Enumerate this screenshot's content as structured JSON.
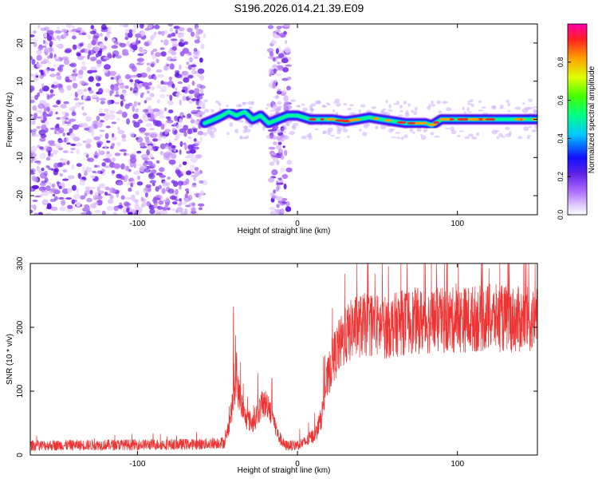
{
  "title": "S196.2026.014.21.39.E09",
  "colors": {
    "snr_line": "#ee3333",
    "ridge": "#e83030"
  },
  "chart_data": [
    {
      "type": "heatmap",
      "name": "spectrogram",
      "xlabel": "Height of straight line (km)",
      "ylabel": "Frequency (Hz)",
      "xlim": [
        -167,
        150
      ],
      "ylim": [
        -25,
        25
      ],
      "xticks": [
        -100,
        0,
        100
      ],
      "yticks": [
        -20,
        -10,
        0,
        10,
        20
      ],
      "noise_regions_km": [
        [
          -167,
          -58
        ],
        [
          -17,
          -5
        ]
      ],
      "signal_start_km": -58,
      "ridge": {
        "x": [
          -58,
          -52,
          -47,
          -43,
          -38,
          -33,
          -28,
          -23,
          -18,
          -12,
          -6,
          0,
          8,
          15,
          22,
          30,
          38,
          45,
          52,
          60,
          68,
          75,
          80,
          84,
          90,
          100,
          110,
          120,
          130,
          140,
          150
        ],
        "y": [
          -1,
          0,
          1,
          2,
          1,
          2,
          0,
          1,
          -1,
          0,
          1,
          1,
          0,
          0,
          0,
          -0.5,
          0,
          0.5,
          0,
          -0.5,
          -1,
          -1,
          -1,
          -1.5,
          0,
          0,
          0,
          0,
          0,
          0,
          0
        ]
      },
      "colorbar": {
        "label": "Normalized spectral amplitude",
        "range": [
          0,
          1
        ],
        "ticks": [
          "0.0",
          "0.2",
          "0.4",
          "0.6",
          "0.8"
        ]
      }
    },
    {
      "type": "line",
      "name": "snr",
      "xlabel": "Height of straight line (km)",
      "ylabel": "SNR (10 * v/v)",
      "xlim": [
        -167,
        150
      ],
      "ylim": [
        0,
        300
      ],
      "xticks": [
        -100,
        0,
        100
      ],
      "yticks": [
        0,
        100,
        200,
        300
      ],
      "series": [
        {
          "name": "SNR",
          "x_anchor": [
            -167,
            -60,
            -45,
            -42,
            -38,
            -33,
            -28,
            -22,
            -18,
            -12,
            -8,
            -2,
            5,
            12,
            15,
            18,
            22,
            26,
            30,
            35,
            45,
            55,
            70,
            90,
            120,
            150
          ],
          "y_anchor": [
            15,
            17,
            20,
            60,
            110,
            60,
            50,
            80,
            80,
            30,
            15,
            15,
            20,
            35,
            60,
            110,
            150,
            170,
            185,
            200,
            205,
            200,
            210,
            210,
            215,
            210
          ],
          "spikes": [
            {
              "x": -40,
              "y": 232
            },
            {
              "x": -38,
              "y": 160
            },
            {
              "x": -16,
              "y": 120
            }
          ]
        }
      ]
    }
  ]
}
